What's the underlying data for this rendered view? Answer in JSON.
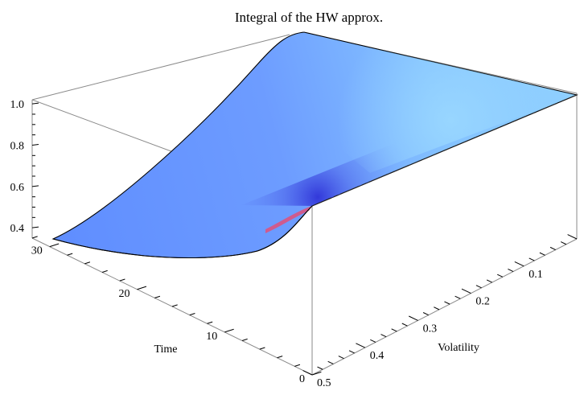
{
  "chart_data": {
    "type": "surface3d",
    "title": "Integral of the HW approx.",
    "xlabel": "Volatility",
    "ylabel": "Time",
    "zlabel": "",
    "x_ticks": [
      "0.1",
      "0.2",
      "0.3",
      "0.4",
      "0.5"
    ],
    "y_ticks": [
      "0",
      "10",
      "20",
      "30"
    ],
    "z_ticks": [
      "0.4",
      "0.6",
      "0.8",
      "1.0"
    ],
    "xlim": [
      0.0,
      0.5
    ],
    "ylim": [
      0,
      32
    ],
    "zlim": [
      0.35,
      1.02
    ],
    "corner_values": [
      {
        "time": 32,
        "volatility": 0.0,
        "value": 1.0
      },
      {
        "time": 0,
        "volatility": 0.0,
        "value": 1.0
      },
      {
        "time": 0,
        "volatility": 0.5,
        "value": 0.51
      },
      {
        "time": 32,
        "volatility": 0.5,
        "value": 0.37
      }
    ],
    "colors": {
      "surface_light": "#8fd0ff",
      "surface_mid": "#7aaeff",
      "surface_dark": "#3e4fe0",
      "ridge_pink": "#e0507a",
      "box": "#8a8a8a"
    }
  }
}
